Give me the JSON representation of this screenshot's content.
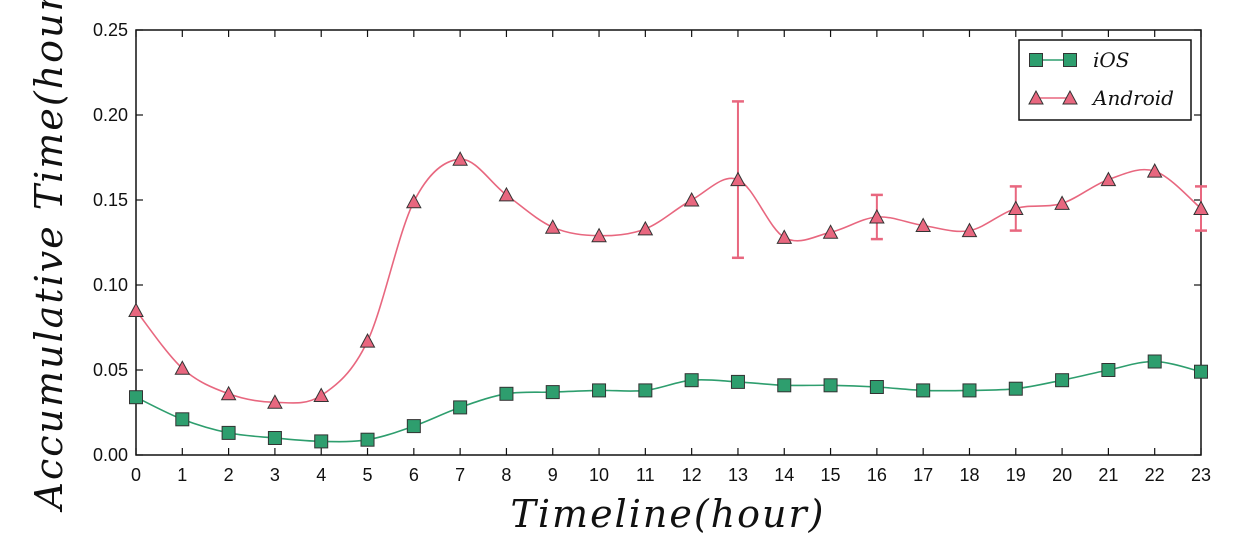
{
  "chart_data": {
    "type": "line",
    "x": [
      0,
      1,
      2,
      3,
      4,
      5,
      6,
      7,
      8,
      9,
      10,
      11,
      12,
      13,
      14,
      15,
      16,
      17,
      18,
      19,
      20,
      21,
      22,
      23
    ],
    "xlabel": "Timeline(hour)",
    "ylabel": "Accumulative Time(hour)",
    "xlim": [
      0,
      23
    ],
    "ylim": [
      0,
      0.25
    ],
    "xticks": [
      "0",
      "1",
      "2",
      "3",
      "4",
      "5",
      "6",
      "7",
      "8",
      "9",
      "10",
      "11",
      "12",
      "13",
      "14",
      "15",
      "16",
      "17",
      "18",
      "19",
      "20",
      "21",
      "22",
      "23"
    ],
    "yticks": [
      "0.00",
      "0.05",
      "0.10",
      "0.15",
      "0.20",
      "0.25"
    ],
    "grid": false,
    "legend_position": "top-right",
    "series": [
      {
        "name": "iOS",
        "color": "#2e9e6e",
        "marker": "square",
        "values": [
          0.034,
          0.021,
          0.013,
          0.01,
          0.008,
          0.009,
          0.017,
          0.028,
          0.036,
          0.037,
          0.038,
          0.038,
          0.044,
          0.043,
          0.041,
          0.041,
          0.04,
          0.038,
          0.038,
          0.039,
          0.044,
          0.05,
          0.055,
          0.049
        ],
        "error": [
          0,
          0,
          0,
          0,
          0,
          0,
          0,
          0,
          0,
          0,
          0,
          0,
          0,
          0,
          0,
          0,
          0,
          0,
          0,
          0,
          0,
          0,
          0,
          0
        ]
      },
      {
        "name": "Android",
        "color": "#e8677f",
        "marker": "triangle",
        "values": [
          0.085,
          0.051,
          0.036,
          0.031,
          0.035,
          0.067,
          0.149,
          0.174,
          0.153,
          0.134,
          0.129,
          0.133,
          0.15,
          0.162,
          0.128,
          0.131,
          0.14,
          0.135,
          0.132,
          0.145,
          0.148,
          0.162,
          0.167,
          0.145
        ],
        "error": [
          0,
          0,
          0,
          0,
          0,
          0,
          0,
          0,
          0,
          0,
          0,
          0,
          0,
          0.046,
          0,
          0,
          0.013,
          0,
          0,
          0.013,
          0,
          0,
          0,
          0.013
        ]
      }
    ]
  }
}
